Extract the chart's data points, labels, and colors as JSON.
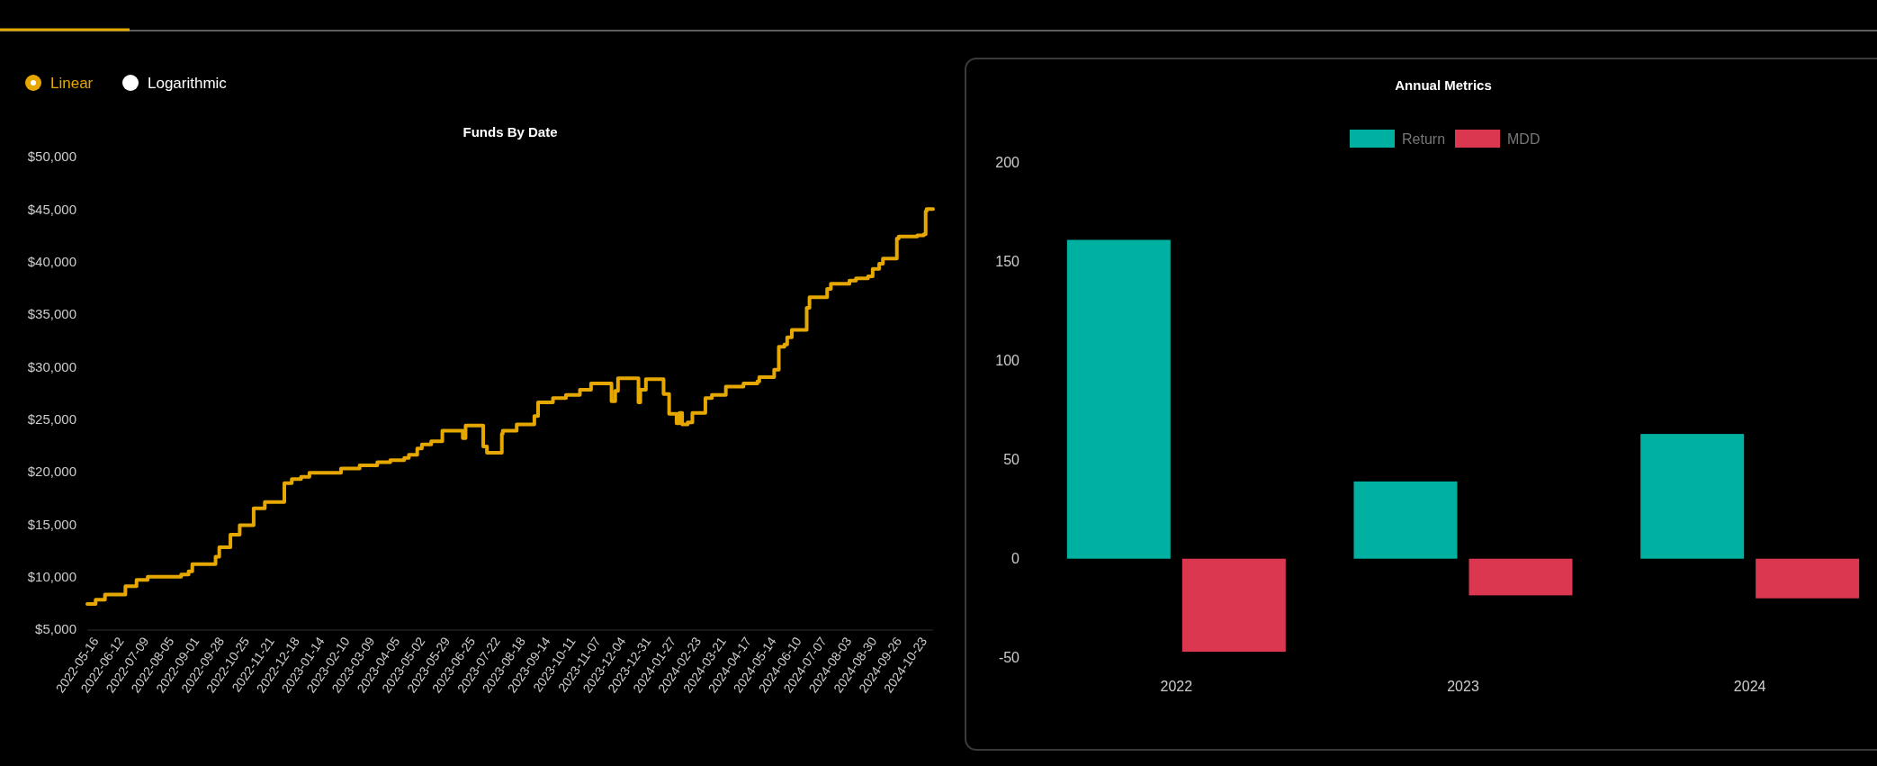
{
  "chart_data": [
    {
      "type": "step",
      "title": "Funds By Date",
      "annotations": [
        "Linear",
        "Logarithmic"
      ],
      "marker": "none",
      "line_style": "solid",
      "x": [
        "2022-05-07",
        "2022-05-16",
        "2022-05-26",
        "2022-06-17",
        "2022-06-29",
        "2022-07-11",
        "2022-08-16",
        "2022-08-24",
        "2022-08-28",
        "2022-09-22",
        "2022-09-26",
        "2022-10-08",
        "2022-10-18",
        "2022-11-02",
        "2022-11-14",
        "2022-12-05",
        "2022-12-13",
        "2022-12-23",
        "2023-01-01",
        "2023-02-04",
        "2023-02-24",
        "2023-03-15",
        "2023-03-29",
        "2023-04-13",
        "2023-04-18",
        "2023-04-27",
        "2023-05-02",
        "2023-05-12",
        "2023-05-24",
        "2023-06-15",
        "2023-06-18",
        "2023-07-07",
        "2023-07-11",
        "2023-07-27",
        "2023-07-28",
        "2023-08-12",
        "2023-08-31",
        "2023-09-04",
        "2023-09-20",
        "2023-10-04",
        "2023-10-19",
        "2023-10-31",
        "2023-11-22",
        "2023-11-26",
        "2023-11-29",
        "2023-12-21",
        "2023-12-23",
        "2023-12-29",
        "2024-01-17",
        "2024-01-23",
        "2024-01-31",
        "2024-02-03",
        "2024-02-06",
        "2024-02-12",
        "2024-02-17",
        "2024-03-02",
        "2024-03-09",
        "2024-03-24",
        "2024-04-12",
        "2024-04-27",
        "2024-04-29",
        "2024-05-15",
        "2024-05-20",
        "2024-05-26",
        "2024-05-29",
        "2024-06-03",
        "2024-06-19",
        "2024-06-22",
        "2024-07-11",
        "2024-07-15",
        "2024-08-04",
        "2024-08-11",
        "2024-08-24",
        "2024-08-29",
        "2024-09-05",
        "2024-09-09",
        "2024-09-24",
        "2024-09-26",
        "2024-10-16",
        "2024-10-23",
        "2024-10-25",
        "2024-10-26",
        "2024-11-02"
      ],
      "series": [
        {
          "color": "#e6a800",
          "values": [
            7400,
            7800,
            8300,
            9100,
            9700,
            10000,
            10200,
            10500,
            11200,
            11900,
            12800,
            14000,
            14900,
            16500,
            17100,
            18900,
            19300,
            19500,
            19900,
            20300,
            20600,
            20900,
            21100,
            21300,
            21600,
            22200,
            22600,
            22900,
            23900,
            23200,
            24400,
            22400,
            21800,
            23600,
            23900,
            24500,
            25300,
            26600,
            27000,
            27300,
            27800,
            28400,
            26700,
            27700,
            28900,
            26600,
            27800,
            28800,
            27400,
            25500,
            24600,
            25600,
            24500,
            24700,
            25600,
            27000,
            27300,
            28100,
            28400,
            28600,
            29000,
            29700,
            31900,
            32100,
            32800,
            33500,
            35600,
            36600,
            37400,
            37900,
            38200,
            38400,
            38600,
            39300,
            39800,
            40300,
            42200,
            42400,
            42500,
            42600,
            44800,
            45000,
            45000
          ]
        }
      ],
      "xlim": [
        "2022-05-07",
        "2024-11-02"
      ],
      "xticks": [
        "2022-05-16",
        "2022-06-12",
        "2022-07-09",
        "2022-08-05",
        "2022-09-01",
        "2022-09-28",
        "2022-10-25",
        "2022-11-21",
        "2022-12-18",
        "2023-01-14",
        "2023-02-10",
        "2023-03-09",
        "2023-04-05",
        "2023-05-02",
        "2023-05-29",
        "2023-06-25",
        "2023-07-22",
        "2023-08-18",
        "2023-09-14",
        "2023-10-11",
        "2023-11-07",
        "2023-12-04",
        "2023-12-31",
        "2024-01-27",
        "2024-02-23",
        "2024-03-21",
        "2024-04-17",
        "2024-05-14",
        "2024-06-10",
        "2024-07-07",
        "2024-08-03",
        "2024-08-30",
        "2024-09-26",
        "2024-10-23"
      ],
      "ylim": [
        5000,
        50000
      ],
      "yticks": [
        {
          "value": 5000,
          "label": "$5,000"
        },
        {
          "value": 10000,
          "label": "$10,000"
        },
        {
          "value": 15000,
          "label": "$15,000"
        },
        {
          "value": 20000,
          "label": "$20,000"
        },
        {
          "value": 25000,
          "label": "$25,000"
        },
        {
          "value": 30000,
          "label": "$30,000"
        },
        {
          "value": 35000,
          "label": "$35,000"
        },
        {
          "value": 40000,
          "label": "$40,000"
        },
        {
          "value": 45000,
          "label": "$45,000"
        },
        {
          "value": 50000,
          "label": "$50,000"
        }
      ]
    },
    {
      "type": "bar",
      "title": "Annual Metrics",
      "legend": "top",
      "categories": [
        "2022",
        "2023",
        "2024"
      ],
      "series": [
        {
          "name": "Return",
          "color": "#00b0a0",
          "values": [
            161,
            39,
            63
          ]
        },
        {
          "name": "MDD",
          "color": "#dc3750",
          "values": [
            -47,
            -18.5,
            -20
          ]
        }
      ],
      "ylim": [
        -50,
        200
      ],
      "yticks": [
        -50,
        0,
        50,
        100,
        150,
        200
      ]
    }
  ]
}
